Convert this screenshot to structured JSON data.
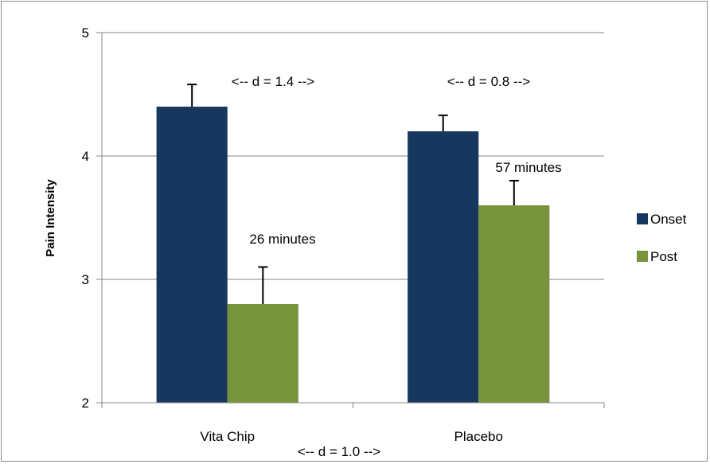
{
  "chart_data": {
    "type": "bar",
    "title": "",
    "xlabel": "",
    "ylabel": "Pain Intensity",
    "ylim": [
      2,
      5
    ],
    "yticks": [
      2,
      3,
      4,
      5
    ],
    "grid": true,
    "legend_position": "right",
    "categories": [
      "Vita Chip",
      "Placebo"
    ],
    "series": [
      {
        "name": "Onset",
        "color": "#17375e",
        "values": [
          4.4,
          4.2
        ],
        "errors": [
          0.18,
          0.13
        ]
      },
      {
        "name": "Post",
        "color": "#77933c",
        "values": [
          2.8,
          3.6
        ],
        "errors": [
          0.3,
          0.2
        ]
      }
    ],
    "annotations": {
      "vita_chip_effect": "<-- d = 1.4 -->",
      "placebo_effect": "<-- d = 0.8 -->",
      "vita_chip_time": "26 minutes",
      "placebo_time": "57 minutes",
      "between_groups_effect": "<-- d = 1.0 -->"
    }
  }
}
